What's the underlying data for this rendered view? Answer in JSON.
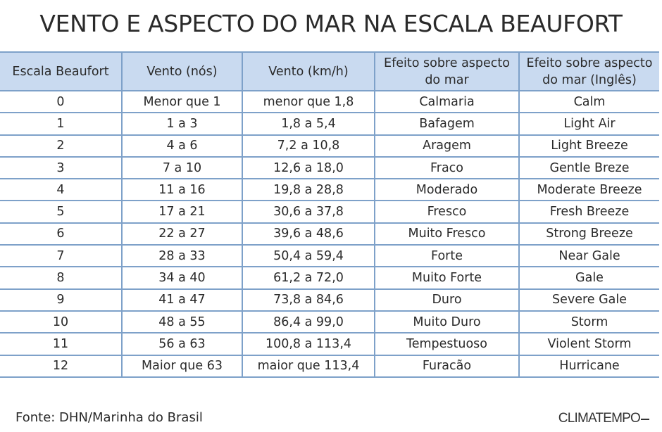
{
  "title": "VENTO E ASPECTO DO MAR NA ESCALA BEAUFORT",
  "table": {
    "headers": [
      "Escala Beaufort",
      "Vento (nós)",
      "Vento (km/h)",
      "Efeito sobre aspecto do mar",
      "Efeito sobre aspecto do mar (Inglês)"
    ],
    "rows": [
      [
        "0",
        "Menor que 1",
        "menor que 1,8",
        "Calmaria",
        "Calm"
      ],
      [
        "1",
        "1 a 3",
        "1,8 a 5,4",
        "Bafagem",
        "Light Air"
      ],
      [
        "2",
        "4 a 6",
        "7,2 a 10,8",
        "Aragem",
        "Light Breeze"
      ],
      [
        "3",
        "7 a 10",
        "12,6 a 18,0",
        "Fraco",
        "Gentle Breze"
      ],
      [
        "4",
        "11 a 16",
        "19,8 a 28,8",
        "Moderado",
        "Moderate Breeze"
      ],
      [
        "5",
        "17 a 21",
        "30,6 a 37,8",
        "Fresco",
        "Fresh Breeze"
      ],
      [
        "6",
        "22 a 27",
        "39,6 a 48,6",
        "Muito Fresco",
        "Strong Breeze"
      ],
      [
        "7",
        "28 a 33",
        "50,4 a 59,4",
        "Forte",
        "Near Gale"
      ],
      [
        "8",
        "34 a 40",
        "61,2 a 72,0",
        "Muito Forte",
        "Gale"
      ],
      [
        "9",
        "41 a 47",
        "73,8 a 84,6",
        "Duro",
        "Severe Gale"
      ],
      [
        "10",
        "48 a 55",
        "86,4 a 99,0",
        "Muito Duro",
        "Storm"
      ],
      [
        "11",
        "56 a 63",
        "100,8 a 113,4",
        "Tempestuoso",
        "Violent Storm"
      ],
      [
        "12",
        "Maior que 63",
        "maior que 113,4",
        "Furacão",
        "Hurricane"
      ]
    ]
  },
  "footer": {
    "source": "Fonte: DHN/Marinha do Brasil",
    "brand": "CLIMATEMPO"
  },
  "colors": {
    "header_background": "#c9daf0",
    "grid_lines": "#7ea1c9",
    "text": "#2a2a2a"
  }
}
